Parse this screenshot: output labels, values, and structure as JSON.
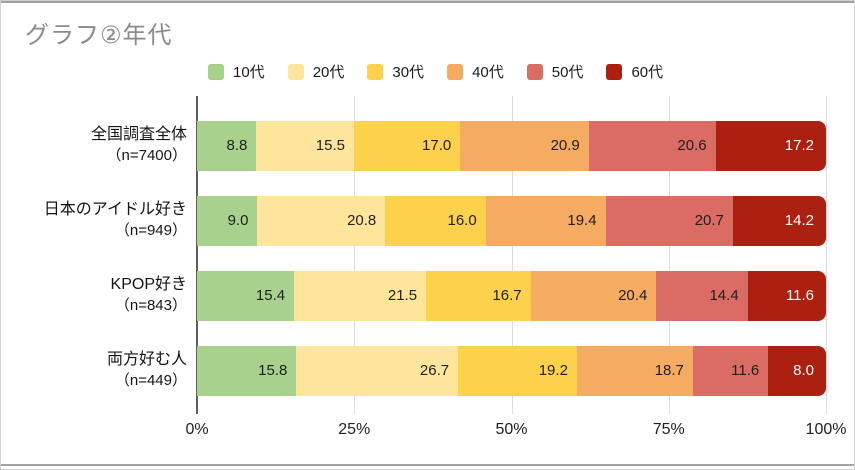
{
  "card": {
    "background": "#ffffff",
    "border_color": "#cfcfcf",
    "edge_line_color": "#a2a2a2",
    "gridline_color": "#dcdcdc",
    "zero_line_color": "#5d5d5d"
  },
  "chart_data": {
    "type": "bar",
    "variant": "stacked-horizontal",
    "title": "グラフ②年代",
    "title_color": "#8a8a8a",
    "unit": "%",
    "legend_position": "top",
    "categories": [
      {
        "label": "全国調査全体",
        "sub": "（n=7400）"
      },
      {
        "label": "日本のアイドル好き",
        "sub": "（n=949）"
      },
      {
        "label": "KPOP好き",
        "sub": "（n=843）"
      },
      {
        "label": "両方好む人",
        "sub": "（n=449）"
      }
    ],
    "series": [
      {
        "name": "10代",
        "color": "#a9d18e",
        "value_color": "#1f1f1f",
        "values": [
          8.8,
          9.0,
          15.4,
          15.8
        ]
      },
      {
        "name": "20代",
        "color": "#ffe59b",
        "value_color": "#1f1f1f",
        "values": [
          15.5,
          20.8,
          21.5,
          26.7
        ]
      },
      {
        "name": "30代",
        "color": "#fcd24c",
        "value_color": "#1f1f1f",
        "values": [
          17.0,
          16.0,
          16.7,
          19.2
        ]
      },
      {
        "name": "40代",
        "color": "#f6ab63",
        "value_color": "#1f1f1f",
        "values": [
          20.9,
          19.4,
          20.4,
          18.7
        ]
      },
      {
        "name": "50代",
        "color": "#da6c64",
        "value_color": "#1f1f1f",
        "values": [
          20.6,
          20.7,
          14.4,
          11.6
        ]
      },
      {
        "name": "60代",
        "color": "#ab200e",
        "value_color": "#ffffff",
        "values": [
          17.2,
          14.2,
          11.6,
          8.0
        ]
      }
    ],
    "x_axis": {
      "range": [
        0,
        100
      ],
      "gridlines": true,
      "ticks": [
        {
          "label": "0%",
          "pos": 0
        },
        {
          "label": "25%",
          "pos": 25
        },
        {
          "label": "50%",
          "pos": 50
        },
        {
          "label": "75%",
          "pos": 75
        },
        {
          "label": "100%",
          "pos": 100
        }
      ]
    }
  }
}
